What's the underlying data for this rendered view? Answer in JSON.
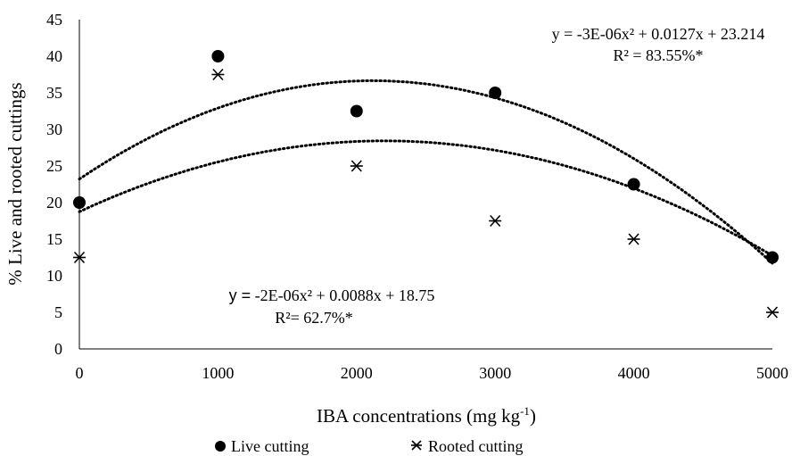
{
  "chart_data": {
    "type": "scatter",
    "xlabel": "IBA concentrations (mg kg",
    "xlabel_superscript": "-1",
    "xlabel_suffix": ")",
    "ylabel": "% Live and rooted cuttings",
    "xlim": [
      0,
      5000
    ],
    "ylim": [
      0,
      45
    ],
    "x_ticks": [
      0,
      1000,
      2000,
      3000,
      4000,
      5000
    ],
    "y_ticks": [
      0,
      5,
      10,
      15,
      20,
      25,
      30,
      35,
      40,
      45
    ],
    "grid": false,
    "legend_position": "bottom",
    "series": [
      {
        "name": "Live cutting",
        "marker": "circle",
        "x": [
          0,
          1000,
          2000,
          3000,
          4000,
          5000
        ],
        "y": [
          20,
          40,
          32.5,
          35,
          22.5,
          12.5
        ],
        "trend": {
          "a": -3e-06,
          "b": 0.0127,
          "c": 23.214
        }
      },
      {
        "name": "Rooted cutting",
        "marker": "asterisk",
        "x": [
          0,
          1000,
          2000,
          3000,
          4000,
          5000
        ],
        "y": [
          12.5,
          37.5,
          25,
          17.5,
          15,
          5
        ],
        "trend": {
          "a": -2e-06,
          "b": 0.0088,
          "c": 18.75
        }
      }
    ],
    "annotations": {
      "live_equation": "y = -3E-06x² + 0.0127x + 23.214",
      "live_r2": "R² = 83.55%*",
      "rooted_equation_prefix": "y =",
      "rooted_equation_rest": " -2E-06x² + 0.0088x + 18.75",
      "rooted_r2": "R²= 62.7%*"
    }
  }
}
